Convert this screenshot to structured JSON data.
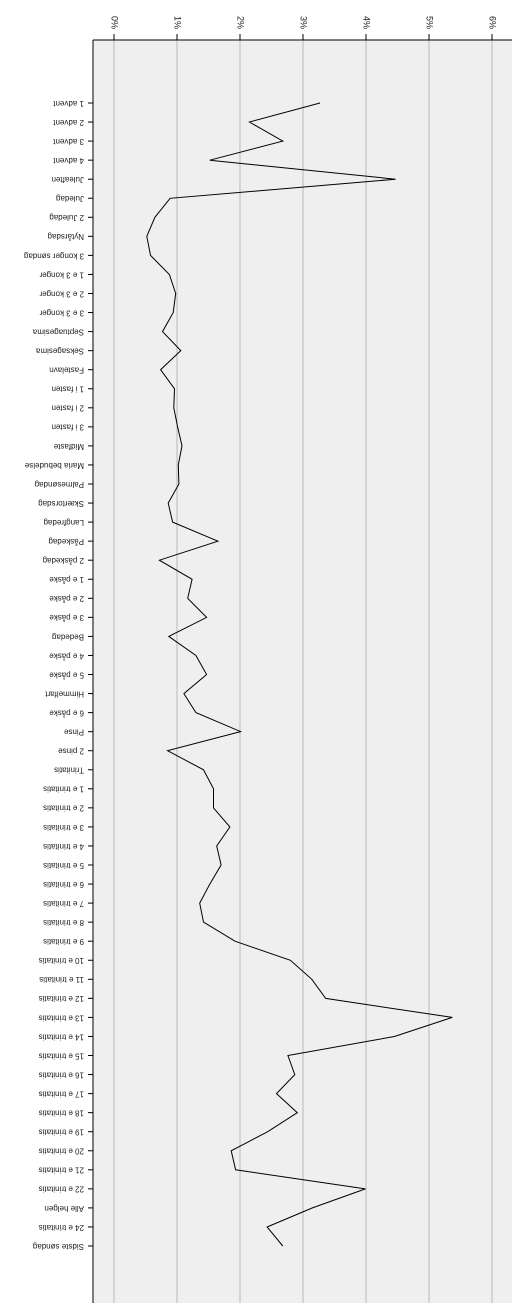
{
  "chart_data": {
    "type": "line",
    "orientation": "rotated-180",
    "x_axis_ticks": [
      "0%",
      "1%",
      "2%",
      "3%",
      "4%",
      "5%",
      "6%"
    ],
    "x_range": [
      0,
      6
    ],
    "grid": true,
    "background_color": "#efefef",
    "line_color": "#000000",
    "grid_color": "#b8b8b8",
    "categories": [
      "1 advent",
      "2 advent",
      "3 advent",
      "4 advent",
      "Juleaften",
      "Juledag",
      "2 Juledag",
      "Nytårsdag",
      "3 konger søndag",
      "1 e 3 konger",
      "2 e 3 konger",
      "3 e 3 konger",
      "Septuagesima",
      "Seksagesima",
      "Fastelavn",
      "1 i fasten",
      "2 i fasten",
      "3 i fasten",
      "Midfaste",
      "Maria bebudelse",
      "Palmesøndag",
      "Skærtorsdag",
      "Langfredag",
      "Påskedag",
      "2 påskedag",
      "1 e påske",
      "2 e påske",
      "3 e påske",
      "Bededag",
      "4 e påske",
      "5 e påske",
      "Himmelfart",
      "6 e påske",
      "Pinse",
      "2 pinse",
      "Trinitatis",
      "1 e trinitatis",
      "2 e trinitatis",
      "3 e trinitatis",
      "4 e trinitatis",
      "5 e trinitatis",
      "6 e trinitatis",
      "7 e trinitatis",
      "8 e trinitatis",
      "9 e trinitatis",
      "10 e trinitatis",
      "11 e trinitatis",
      "12 e trinitatis",
      "13 e trinitatis",
      "14 e trinitatis",
      "15 e trinitatis",
      "16 e trinitatis",
      "17 e trinitatis",
      "18 e trinitatis",
      "19 e trinitatis",
      "20 e trinitatis",
      "21 e trinitatis",
      "22 e trinitatis",
      "Alle helgen",
      "24 e trinitatis",
      "Sidste søndag"
    ],
    "values": [
      3.27,
      2.15,
      2.68,
      1.52,
      4.47,
      0.89,
      0.65,
      0.52,
      0.58,
      0.88,
      0.98,
      0.94,
      0.77,
      1.06,
      0.74,
      0.96,
      0.95,
      1.01,
      1.08,
      1.02,
      1.03,
      0.86,
      0.93,
      1.65,
      0.72,
      1.24,
      1.17,
      1.47,
      0.87,
      1.3,
      1.47,
      1.11,
      1.3,
      2.01,
      0.85,
      1.42,
      1.58,
      1.58,
      1.84,
      1.63,
      1.7,
      1.52,
      1.36,
      1.42,
      1.92,
      2.8,
      3.14,
      3.36,
      5.37,
      4.45,
      2.76,
      2.87,
      2.58,
      2.91,
      2.44,
      1.86,
      1.93,
      3.99,
      3.15,
      2.43,
      2.68
    ]
  }
}
